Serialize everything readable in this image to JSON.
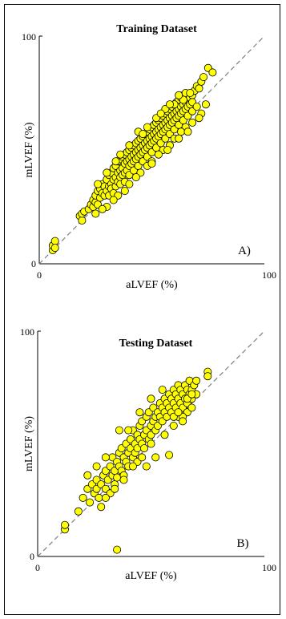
{
  "chart_data": [
    {
      "type": "scatter",
      "title": "Training Dataset",
      "xlabel": "aLVEF (%)",
      "ylabel": "mLVEF (%)",
      "panel_label": "A)",
      "xlim": [
        0,
        100
      ],
      "ylim": [
        0,
        100
      ],
      "x_ticks": [
        "0",
        "100"
      ],
      "y_ticks": [
        "0",
        "100"
      ],
      "identity_line": true,
      "marker_color": "#ffff00",
      "marker_edge": "#000000",
      "points": [
        [
          6,
          6
        ],
        [
          6,
          8
        ],
        [
          7,
          10
        ],
        [
          7,
          7
        ],
        [
          18,
          21
        ],
        [
          19,
          19
        ],
        [
          19,
          22
        ],
        [
          20,
          23
        ],
        [
          22,
          24
        ],
        [
          23,
          26
        ],
        [
          24,
          25
        ],
        [
          24,
          28
        ],
        [
          25,
          27
        ],
        [
          25,
          30
        ],
        [
          26,
          26
        ],
        [
          26,
          32
        ],
        [
          27,
          29
        ],
        [
          27,
          33
        ],
        [
          28,
          31
        ],
        [
          28,
          35
        ],
        [
          29,
          30
        ],
        [
          29,
          34
        ],
        [
          30,
          32
        ],
        [
          30,
          37
        ],
        [
          31,
          34
        ],
        [
          31,
          30
        ],
        [
          31,
          39
        ],
        [
          32,
          35
        ],
        [
          32,
          33
        ],
        [
          32,
          40
        ],
        [
          33,
          37
        ],
        [
          33,
          31
        ],
        [
          33,
          42
        ],
        [
          34,
          38
        ],
        [
          34,
          34
        ],
        [
          34,
          43
        ],
        [
          35,
          40
        ],
        [
          35,
          36
        ],
        [
          35,
          45
        ],
        [
          36,
          41
        ],
        [
          36,
          38
        ],
        [
          36,
          46
        ],
        [
          37,
          42
        ],
        [
          37,
          39
        ],
        [
          37,
          47
        ],
        [
          38,
          44
        ],
        [
          38,
          40
        ],
        [
          38,
          48
        ],
        [
          39,
          45
        ],
        [
          39,
          41
        ],
        [
          39,
          49
        ],
        [
          40,
          46
        ],
        [
          40,
          43
        ],
        [
          40,
          50
        ],
        [
          41,
          47
        ],
        [
          41,
          44
        ],
        [
          41,
          51
        ],
        [
          42,
          48
        ],
        [
          42,
          45
        ],
        [
          42,
          52
        ],
        [
          43,
          49
        ],
        [
          43,
          46
        ],
        [
          43,
          53
        ],
        [
          44,
          50
        ],
        [
          44,
          47
        ],
        [
          44,
          54
        ],
        [
          45,
          51
        ],
        [
          45,
          48
        ],
        [
          45,
          55
        ],
        [
          46,
          52
        ],
        [
          46,
          49
        ],
        [
          46,
          56
        ],
        [
          47,
          53
        ],
        [
          47,
          50
        ],
        [
          47,
          57
        ],
        [
          48,
          54
        ],
        [
          48,
          51
        ],
        [
          48,
          58
        ],
        [
          49,
          55
        ],
        [
          49,
          52
        ],
        [
          49,
          59
        ],
        [
          50,
          56
        ],
        [
          50,
          53
        ],
        [
          50,
          60
        ],
        [
          51,
          57
        ],
        [
          51,
          54
        ],
        [
          51,
          61
        ],
        [
          52,
          58
        ],
        [
          52,
          55
        ],
        [
          52,
          62
        ],
        [
          53,
          59
        ],
        [
          53,
          56
        ],
        [
          53,
          63
        ],
        [
          54,
          60
        ],
        [
          54,
          57
        ],
        [
          54,
          64
        ],
        [
          55,
          61
        ],
        [
          55,
          58
        ],
        [
          55,
          65
        ],
        [
          56,
          62
        ],
        [
          56,
          59
        ],
        [
          56,
          66
        ],
        [
          57,
          63
        ],
        [
          57,
          60
        ],
        [
          57,
          67
        ],
        [
          58,
          64
        ],
        [
          58,
          61
        ],
        [
          58,
          68
        ],
        [
          59,
          65
        ],
        [
          59,
          62
        ],
        [
          59,
          69
        ],
        [
          60,
          66
        ],
        [
          60,
          63
        ],
        [
          60,
          70
        ],
        [
          61,
          67
        ],
        [
          61,
          64
        ],
        [
          61,
          71
        ],
        [
          62,
          68
        ],
        [
          62,
          65
        ],
        [
          62,
          72
        ],
        [
          63,
          69
        ],
        [
          63,
          66
        ],
        [
          63,
          73
        ],
        [
          64,
          70
        ],
        [
          64,
          67
        ],
        [
          64,
          74
        ],
        [
          65,
          71
        ],
        [
          65,
          68
        ],
        [
          65,
          75
        ],
        [
          66,
          72
        ],
        [
          66,
          69
        ],
        [
          67,
          73
        ],
        [
          67,
          70
        ],
        [
          68,
          74
        ],
        [
          68,
          71
        ],
        [
          69,
          76
        ],
        [
          70,
          78
        ],
        [
          71,
          77
        ],
        [
          72,
          80
        ],
        [
          73,
          82
        ],
        [
          75,
          86
        ],
        [
          77,
          84
        ],
        [
          36,
          35
        ],
        [
          38,
          36
        ],
        [
          40,
          39
        ],
        [
          42,
          41
        ],
        [
          44,
          43
        ],
        [
          46,
          45
        ],
        [
          48,
          47
        ],
        [
          50,
          49
        ],
        [
          52,
          51
        ],
        [
          54,
          53
        ],
        [
          56,
          55
        ],
        [
          58,
          57
        ],
        [
          60,
          59
        ],
        [
          62,
          61
        ],
        [
          64,
          63
        ],
        [
          66,
          65
        ],
        [
          68,
          67
        ],
        [
          70,
          69
        ],
        [
          55,
          50
        ],
        [
          60,
          55
        ],
        [
          65,
          60
        ],
        [
          45,
          40
        ],
        [
          50,
          45
        ],
        [
          35,
          30
        ],
        [
          40,
          35
        ],
        [
          30,
          25
        ],
        [
          25,
          22
        ],
        [
          28,
          24
        ],
        [
          33,
          28
        ],
        [
          38,
          32
        ],
        [
          43,
          38
        ],
        [
          48,
          43
        ],
        [
          53,
          48
        ],
        [
          58,
          52
        ],
        [
          63,
          58
        ],
        [
          68,
          62
        ],
        [
          72,
          66
        ],
        [
          74,
          70
        ],
        [
          71,
          64
        ],
        [
          62,
          55
        ],
        [
          50,
          44
        ],
        [
          57,
          50
        ],
        [
          66,
          58
        ],
        [
          34,
          45
        ],
        [
          40,
          52
        ],
        [
          44,
          58
        ],
        [
          48,
          60
        ],
        [
          52,
          64
        ],
        [
          56,
          68
        ],
        [
          60,
          70
        ],
        [
          64,
          72
        ],
        [
          30,
          40
        ],
        [
          26,
          35
        ],
        [
          36,
          48
        ],
        [
          46,
          57
        ],
        [
          54,
          66
        ],
        [
          58,
          70
        ],
        [
          62,
          74
        ],
        [
          67,
          75
        ]
      ]
    },
    {
      "type": "scatter",
      "title": "Testing Dataset",
      "xlabel": "aLVEF (%)",
      "ylabel": "mLVEF (%)",
      "panel_label": "B)",
      "xlim": [
        0,
        100
      ],
      "ylim": [
        0,
        100
      ],
      "x_ticks": [
        "0",
        "100"
      ],
      "y_ticks": [
        "0",
        "100"
      ],
      "identity_line": true,
      "marker_color": "#ffff00",
      "marker_edge": "#000000",
      "points": [
        [
          12,
          12
        ],
        [
          12,
          14
        ],
        [
          18,
          20
        ],
        [
          20,
          26
        ],
        [
          22,
          30
        ],
        [
          23,
          24
        ],
        [
          24,
          32
        ],
        [
          25,
          28
        ],
        [
          26,
          30
        ],
        [
          26,
          34
        ],
        [
          27,
          26
        ],
        [
          28,
          32
        ],
        [
          28,
          22
        ],
        [
          29,
          36
        ],
        [
          30,
          30
        ],
        [
          30,
          38
        ],
        [
          31,
          34
        ],
        [
          32,
          28
        ],
        [
          32,
          40
        ],
        [
          33,
          36
        ],
        [
          33,
          44
        ],
        [
          34,
          38
        ],
        [
          34,
          32
        ],
        [
          35,
          42
        ],
        [
          35,
          35
        ],
        [
          36,
          46
        ],
        [
          36,
          40
        ],
        [
          37,
          38
        ],
        [
          37,
          48
        ],
        [
          38,
          44
        ],
        [
          38,
          36
        ],
        [
          39,
          50
        ],
        [
          39,
          42
        ],
        [
          40,
          46
        ],
        [
          40,
          40
        ],
        [
          41,
          52
        ],
        [
          41,
          48
        ],
        [
          42,
          44
        ],
        [
          42,
          56
        ],
        [
          43,
          50
        ],
        [
          43,
          46
        ],
        [
          44,
          54
        ],
        [
          44,
          48
        ],
        [
          45,
          58
        ],
        [
          45,
          52
        ],
        [
          46,
          50
        ],
        [
          46,
          60
        ],
        [
          47,
          54
        ],
        [
          47,
          48
        ],
        [
          48,
          62
        ],
        [
          48,
          56
        ],
        [
          49,
          52
        ],
        [
          49,
          64
        ],
        [
          50,
          58
        ],
        [
          50,
          54
        ],
        [
          51,
          66
        ],
        [
          51,
          60
        ],
        [
          52,
          56
        ],
        [
          52,
          62
        ],
        [
          53,
          64
        ],
        [
          53,
          58
        ],
        [
          54,
          68
        ],
        [
          54,
          62
        ],
        [
          55,
          60
        ],
        [
          55,
          66
        ],
        [
          56,
          70
        ],
        [
          56,
          64
        ],
        [
          57,
          62
        ],
        [
          57,
          68
        ],
        [
          58,
          72
        ],
        [
          58,
          66
        ],
        [
          59,
          64
        ],
        [
          59,
          70
        ],
        [
          60,
          74
        ],
        [
          60,
          68
        ],
        [
          61,
          66
        ],
        [
          61,
          72
        ],
        [
          62,
          70
        ],
        [
          62,
          76
        ],
        [
          63,
          68
        ],
        [
          63,
          74
        ],
        [
          64,
          72
        ],
        [
          64,
          66
        ],
        [
          65,
          76
        ],
        [
          65,
          70
        ],
        [
          66,
          74
        ],
        [
          66,
          68
        ],
        [
          67,
          72
        ],
        [
          67,
          78
        ],
        [
          68,
          70
        ],
        [
          68,
          74
        ],
        [
          69,
          76
        ],
        [
          70,
          72
        ],
        [
          70,
          78
        ],
        [
          75,
          82
        ],
        [
          75,
          80
        ],
        [
          35,
          3
        ],
        [
          52,
          44
        ],
        [
          58,
          45
        ],
        [
          48,
          40
        ],
        [
          44,
          42
        ],
        [
          60,
          58
        ],
        [
          62,
          62
        ],
        [
          56,
          54
        ],
        [
          50,
          50
        ],
        [
          46,
          44
        ],
        [
          42,
          40
        ],
        [
          38,
          34
        ],
        [
          34,
          30
        ],
        [
          30,
          26
        ],
        [
          66,
          64
        ],
        [
          64,
          62
        ],
        [
          68,
          66
        ],
        [
          40,
          56
        ],
        [
          45,
          64
        ],
        [
          50,
          70
        ],
        [
          55,
          74
        ],
        [
          30,
          44
        ],
        [
          36,
          56
        ],
        [
          26,
          40
        ],
        [
          22,
          36
        ],
        [
          60,
          62
        ],
        [
          62,
          64
        ],
        [
          64,
          60
        ],
        [
          66,
          70
        ],
        [
          68,
          72
        ]
      ]
    }
  ]
}
